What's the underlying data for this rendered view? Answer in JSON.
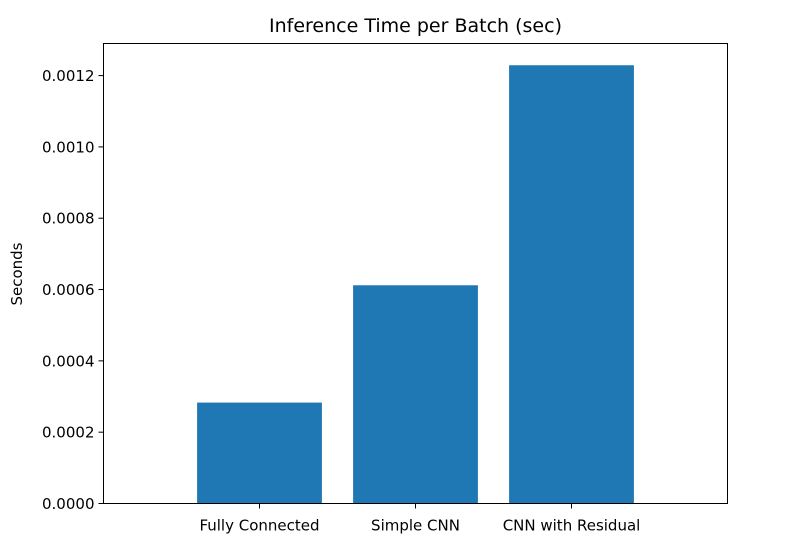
{
  "chart_data": {
    "type": "bar",
    "title": "Inference Time per Batch (sec)",
    "xlabel": "",
    "ylabel": "Seconds",
    "categories": [
      "Fully Connected",
      "Simple CNN",
      "CNN with Residual"
    ],
    "values": [
      0.000283,
      0.000612,
      0.001229
    ],
    "ylim": [
      0,
      0.00129
    ],
    "yticks": [
      0,
      0.0002,
      0.0004,
      0.0006,
      0.0008,
      0.001,
      0.0012
    ],
    "ytick_labels": [
      "0.0000",
      "0.0002",
      "0.0004",
      "0.0006",
      "0.0008",
      "0.0010",
      "0.0012"
    ],
    "bar_color": "#1f77b4",
    "grid": false,
    "legend": "none"
  }
}
